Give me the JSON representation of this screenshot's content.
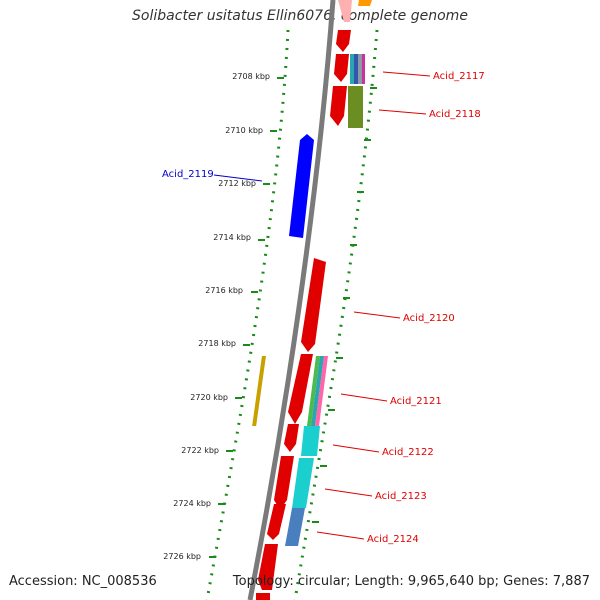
{
  "title": "Solibacter usitatus Ellin6076, complete genome",
  "footer": {
    "accession": "Accession: NC_008536",
    "topology": "Topology: circular; Length: 9,965,640 bp; Genes: 7,887"
  },
  "kbp_ticks": [
    "2708 kbp",
    "2710 kbp",
    "2712 kbp",
    "2714 kbp",
    "2716 kbp",
    "2718 kbp",
    "2720 kbp",
    "2722 kbp",
    "2724 kbp",
    "2726 kbp"
  ],
  "gene_labels": [
    {
      "name": "Acid_2117",
      "color": "#e00000"
    },
    {
      "name": "Acid_2118",
      "color": "#e00000"
    },
    {
      "name": "Acid_2119",
      "color": "#0000cc"
    },
    {
      "name": "Acid_2120",
      "color": "#e00000"
    },
    {
      "name": "Acid_2121",
      "color": "#e00000"
    },
    {
      "name": "Acid_2122",
      "color": "#e00000"
    },
    {
      "name": "Acid_2123",
      "color": "#e00000"
    },
    {
      "name": "Acid_2124",
      "color": "#e00000"
    }
  ],
  "colors": {
    "backbone": "#777777",
    "gene_forward": "#ff0000",
    "gene_reverse": "#0000ff",
    "dotted_ring": "#1a8a1a"
  }
}
